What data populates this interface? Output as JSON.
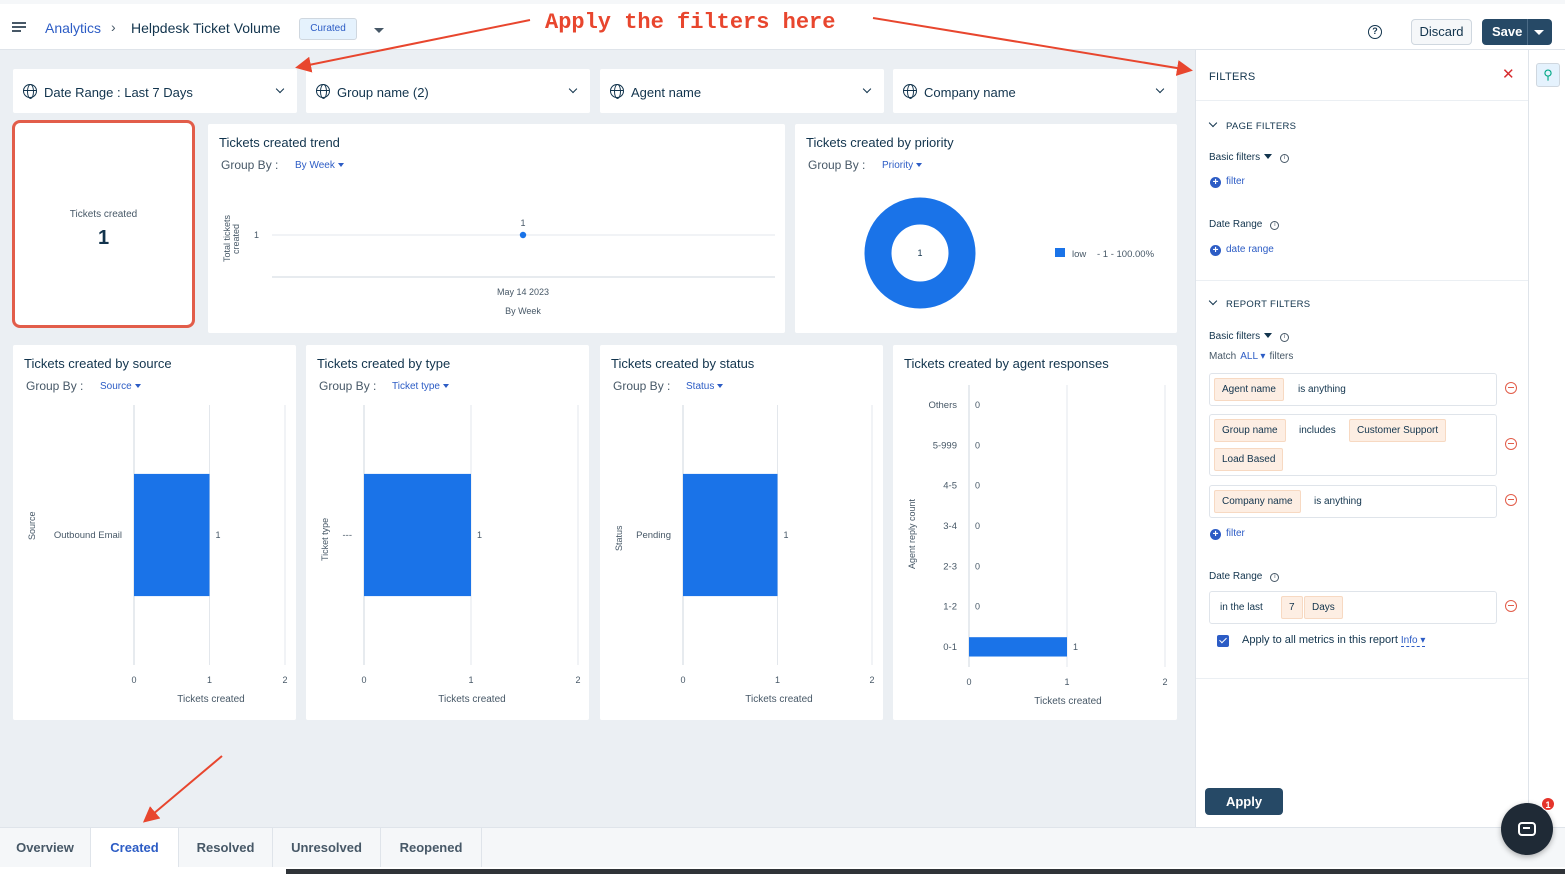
{
  "header": {
    "breadcrumb_root": "Analytics",
    "breadcrumb_sep": "›",
    "report_title": "Helpdesk Ticket Volume",
    "badge": "Curated",
    "discard_label": "Discard",
    "save_label": "Save"
  },
  "annotation": {
    "text": "Apply the filters here",
    "color": "#e8462e"
  },
  "filter_bar": [
    {
      "label": "Date Range :  Last 7 Days"
    },
    {
      "label": "Group name (2)"
    },
    {
      "label": "Agent name"
    },
    {
      "label": "Company name"
    }
  ],
  "kpi": {
    "label": "Tickets created",
    "value": "1"
  },
  "trend": {
    "title": "Tickets created trend",
    "groupby_label": "Group By :",
    "groupby_value": "By Week",
    "ylabel_line1": "Total tickets",
    "ylabel_line2": "created",
    "y_tick": "1",
    "point_label": "1",
    "x_tick": "May 14 2023",
    "xlabel": "By Week"
  },
  "priority": {
    "title": "Tickets created by priority",
    "groupby_label": "Group By :",
    "groupby_value": "Priority",
    "center": "1",
    "legend": "low",
    "legend_value": "- 1 - 100.00%"
  },
  "source": {
    "title": "Tickets created by source",
    "groupby_label": "Group By :",
    "groupby_value": "Source",
    "ylabel": "Source",
    "xlabel": "Tickets created"
  },
  "type": {
    "title": "Tickets created by type",
    "groupby_label": "Group By :",
    "groupby_value": "Ticket type",
    "ylabel": "Ticket type",
    "xlabel": "Tickets created"
  },
  "status": {
    "title": "Tickets created by status",
    "groupby_label": "Group By :",
    "groupby_value": "Status",
    "ylabel": "Status",
    "xlabel": "Tickets created"
  },
  "agent_resp": {
    "title": "Tickets created by agent responses",
    "ylabel": "Agent reply count",
    "xlabel": "Tickets created"
  },
  "chart_data": [
    {
      "type": "line",
      "title": "Tickets created trend",
      "x": [
        "May 14 2023"
      ],
      "values": [
        1
      ],
      "xlabel": "By Week",
      "ylabel": "Total tickets created",
      "x_ticks": [],
      "y_ticks": []
    },
    {
      "type": "pie",
      "title": "Tickets created by priority",
      "categories": [
        "low"
      ],
      "values": [
        1
      ],
      "colors": [
        "#1a73e8"
      ]
    },
    {
      "type": "bar",
      "title": "Tickets created by source",
      "categories": [
        "Outbound Email"
      ],
      "values": [
        1
      ],
      "xlabel": "Tickets created",
      "ylabel": "Source",
      "xlim": [
        0,
        2
      ],
      "x_ticks": [
        "0",
        "1",
        "2"
      ],
      "orientation": "horizontal"
    },
    {
      "type": "bar",
      "title": "Tickets created by type",
      "categories": [
        "---"
      ],
      "values": [
        1
      ],
      "xlabel": "Tickets created",
      "ylabel": "Ticket type",
      "xlim": [
        0,
        2
      ],
      "x_ticks": [
        "0",
        "1",
        "2"
      ],
      "orientation": "horizontal"
    },
    {
      "type": "bar",
      "title": "Tickets created by status",
      "categories": [
        "Pending"
      ],
      "values": [
        1
      ],
      "xlabel": "Tickets created",
      "ylabel": "Status",
      "xlim": [
        0,
        2
      ],
      "x_ticks": [
        "0",
        "1",
        "2"
      ],
      "orientation": "horizontal"
    },
    {
      "type": "bar",
      "title": "Tickets created by agent responses",
      "categories": [
        "Others",
        "5-999",
        "4-5",
        "3-4",
        "2-3",
        "1-2",
        "0-1"
      ],
      "values": [
        0,
        0,
        0,
        0,
        0,
        0,
        1
      ],
      "xlabel": "Tickets created",
      "ylabel": "Agent reply count",
      "xlim": [
        0,
        2
      ],
      "x_ticks": [
        "0",
        "1",
        "2"
      ],
      "orientation": "horizontal"
    }
  ],
  "bar_color": "#1a73e8",
  "panel": {
    "title": "FILTERS",
    "close": "✕",
    "page_filters": "PAGE FILTERS",
    "basic_filters": "Basic filters",
    "add_filter": "filter",
    "date_range": "Date Range",
    "add_date_range": "date range",
    "report_filters": "REPORT FILTERS",
    "match_prefix": "Match",
    "match_value": "ALL",
    "match_suffix": "filters",
    "conditions": {
      "agent_field": "Agent name",
      "agent_op": "is anything",
      "group_field": "Group name",
      "group_op": "includes",
      "group_v1": "Customer Support",
      "group_v2": "Load Based",
      "company_field": "Company name",
      "company_op": "is anything"
    },
    "report_add_filter": "filter",
    "report_date_range": "Date Range",
    "dr_prefix": "in the last",
    "dr_number": "7",
    "dr_unit": "Days",
    "apply_all": "Apply to all metrics in this report",
    "info": "Info",
    "apply": "Apply"
  },
  "tabs": [
    "Overview",
    "Created",
    "Resolved",
    "Unresolved",
    "Reopened"
  ],
  "active_tab": "Created",
  "chat_badge": "1"
}
